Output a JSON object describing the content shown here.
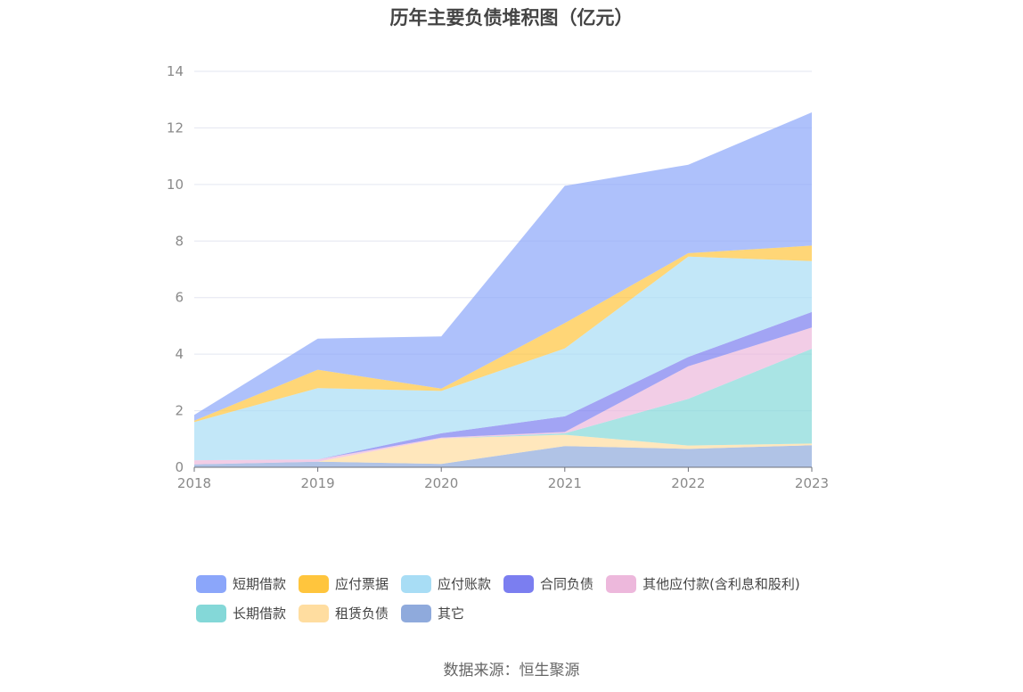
{
  "chart_data": {
    "type": "area",
    "stacked": true,
    "title": "历年主要负债堆积图（亿元）",
    "source": "数据来源：恒生聚源",
    "categories": [
      "2018",
      "2019",
      "2020",
      "2021",
      "2022",
      "2023"
    ],
    "ylim": [
      0,
      14
    ],
    "yticks": [
      "0",
      "2",
      "4",
      "6",
      "8",
      "10",
      "12",
      "14"
    ],
    "grid": true,
    "legend_position": "bottom",
    "series": [
      {
        "name": "其它",
        "color": "#8FAADC",
        "values": [
          0.1,
          0.2,
          0.12,
          0.75,
          0.65,
          0.78
        ]
      },
      {
        "name": "租赁负债",
        "color": "#FFDDA0",
        "values": [
          0.0,
          0.0,
          0.9,
          0.4,
          0.12,
          0.06
        ]
      },
      {
        "name": "长期借款",
        "color": "#84D8D8",
        "values": [
          0.0,
          0.0,
          0.0,
          0.05,
          1.65,
          3.35
        ]
      },
      {
        "name": "其他应付款(含利息和股利)",
        "color": "#EDB8DC",
        "values": [
          0.15,
          0.08,
          0.03,
          0.05,
          1.15,
          0.75
        ]
      },
      {
        "name": "合同负债",
        "color": "#7B7EF0",
        "values": [
          0.0,
          0.0,
          0.15,
          0.55,
          0.33,
          0.55
        ]
      },
      {
        "name": "应付账款",
        "color": "#A8DDF5",
        "values": [
          1.35,
          2.52,
          1.5,
          2.4,
          3.55,
          1.8
        ]
      },
      {
        "name": "应付票据",
        "color": "#FFC53D",
        "values": [
          0.05,
          0.65,
          0.08,
          0.9,
          0.12,
          0.55
        ]
      },
      {
        "name": "短期借款",
        "color": "#8BA6FA",
        "values": [
          0.2,
          1.1,
          1.85,
          4.85,
          3.13,
          4.71
        ]
      }
    ],
    "legend_order": [
      "短期借款",
      "应付票据",
      "应付账款",
      "合同负债",
      "其他应付款(含利息和股利)",
      "长期借款",
      "租赁负债",
      "其它"
    ]
  }
}
